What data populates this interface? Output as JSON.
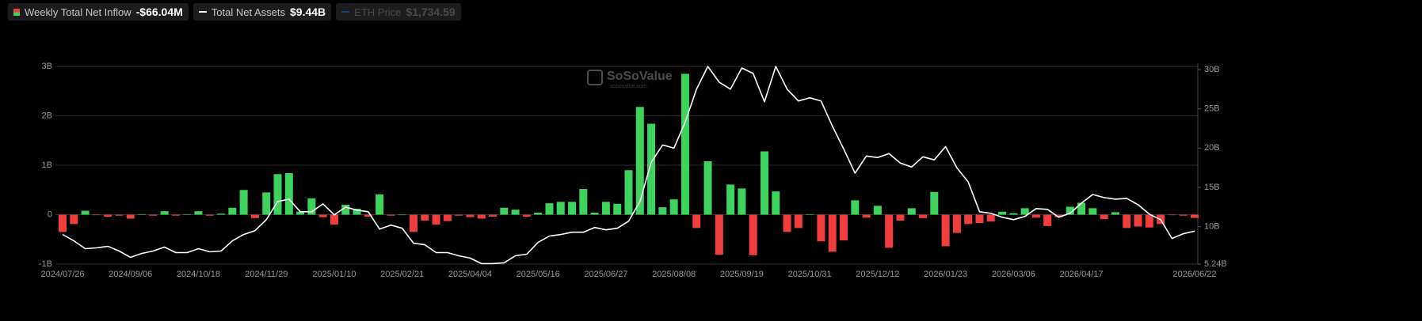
{
  "chart_data": {
    "type": "bar_line",
    "watermark": "SoSoValue",
    "watermark_sub": "sosovalue.com",
    "categories": [
      "2024/07/26",
      null,
      null,
      null,
      null,
      null,
      "2024/09/06",
      null,
      null,
      null,
      null,
      null,
      "2024/10/18",
      null,
      null,
      null,
      null,
      null,
      "2024/11/29",
      null,
      null,
      null,
      null,
      null,
      "2025/01/10",
      null,
      null,
      null,
      null,
      null,
      "2025/02/21",
      null,
      null,
      null,
      null,
      null,
      "2025/04/04",
      null,
      null,
      null,
      null,
      null,
      "2025/05/16",
      null,
      null,
      null,
      null,
      null,
      "2025/06/27",
      null,
      null,
      null,
      null,
      null,
      "2025/08/08",
      null,
      null,
      null,
      null,
      null,
      "2025/09/19",
      null,
      null,
      null,
      null,
      null,
      "2025/10/31",
      null,
      null,
      null,
      null,
      null,
      "2025/12/12",
      null,
      null,
      null,
      null,
      null,
      "2026/01/23",
      null,
      null,
      null,
      null,
      null,
      "2026/03/06",
      null,
      null,
      null,
      null,
      null,
      "2026/04/17",
      null,
      null,
      null,
      null,
      null,
      null,
      null,
      null,
      null,
      "2026/06/22"
    ],
    "series": [
      {
        "name": "Weekly Total Net Inflow",
        "latest_label": "-$66.04M",
        "color": "#3dd35c",
        "negative_color": "#f23d3d",
        "values": [
          -0.35,
          -0.19,
          0.08,
          -0.01,
          -0.04,
          -0.02,
          -0.08,
          0.01,
          -0.02,
          0.07,
          -0.02,
          0.01,
          0.07,
          -0.02,
          0.02,
          0.14,
          0.5,
          -0.07,
          0.45,
          0.82,
          0.84,
          0.06,
          0.33,
          -0.05,
          -0.2,
          0.2,
          0.12,
          -0.04,
          0.41,
          -0.02,
          0,
          -0.35,
          -0.12,
          -0.2,
          -0.13,
          -0.02,
          -0.05,
          -0.08,
          -0.04,
          0.14,
          0.1,
          -0.04,
          0.04,
          0.23,
          0.26,
          0.26,
          0.52,
          0.04,
          0.26,
          0.22,
          0.9,
          2.18,
          1.84,
          0.15,
          0.31,
          2.85,
          -0.27,
          1.08,
          -0.81,
          0.61,
          0.53,
          -0.82,
          1.28,
          0.47,
          -0.35,
          -0.27,
          0.01,
          -0.54,
          -0.75,
          -0.52,
          0.29,
          -0.06,
          0.18,
          -0.67,
          -0.12,
          0.13,
          -0.07,
          0.46,
          -0.64,
          -0.37,
          -0.19,
          -0.17,
          -0.14,
          0.06,
          0.03,
          0.13,
          -0.06,
          -0.23,
          -0.05,
          0.16,
          0.24,
          0.13,
          -0.09,
          0.05,
          -0.27,
          -0.24,
          -0.26,
          -0.19,
          -0.01,
          -0.02,
          -0.06604
        ]
      },
      {
        "name": "Total Net Assets",
        "latest_label": "$9.44B",
        "color": "#ffffff",
        "axis": "y2",
        "values": [
          9.0,
          8.2,
          7.2,
          7.3,
          7.5,
          6.9,
          6.1,
          6.6,
          6.9,
          7.4,
          6.7,
          6.7,
          7.2,
          6.8,
          6.9,
          8.2,
          9.0,
          9.5,
          10.9,
          13.2,
          13.5,
          11.9,
          11.9,
          12.9,
          11.5,
          12.5,
          12.1,
          11.9,
          9.7,
          10.2,
          9.8,
          7.9,
          7.7,
          6.7,
          6.7,
          6.3,
          6.0,
          5.3,
          5.3,
          5.4,
          6.3,
          6.5,
          8.0,
          8.8,
          9.0,
          9.3,
          9.3,
          9.9,
          9.6,
          9.8,
          10.7,
          13.2,
          18.2,
          20.4,
          20.0,
          23.3,
          27.5,
          30.4,
          28.4,
          27.5,
          30.2,
          29.5,
          25.9,
          30.4,
          27.5,
          26.0,
          26.4,
          26.0,
          22.8,
          19.9,
          16.8,
          19.0,
          18.8,
          19.3,
          18.1,
          17.6,
          18.9,
          18.5,
          20.2,
          17.5,
          15.7,
          11.9,
          11.7,
          11.2,
          10.9,
          11.3,
          12.3,
          12.2,
          11.2,
          11.7,
          13.0,
          14.1,
          13.7,
          13.5,
          13.6,
          12.8,
          11.6,
          10.9,
          8.5,
          9.1,
          9.44
        ]
      }
    ],
    "eth_price": {
      "name": "ETH Price",
      "latest_label": "$1,734.59",
      "color": "#1e3a8a"
    },
    "ylim": [
      -1,
      3
    ],
    "yticks": [
      {
        "value": -1,
        "label": "-1B"
      },
      0,
      {
        "value": 1,
        "label": "1B"
      },
      {
        "value": 2,
        "label": "2B"
      },
      {
        "value": 3,
        "label": "3B"
      }
    ],
    "y2lim": [
      5.24,
      30.4
    ],
    "y2ticks": [
      {
        "value": 5.24,
        "label": "5.24B"
      },
      {
        "value": 10,
        "label": "10B"
      },
      {
        "value": 15,
        "label": "15B"
      },
      {
        "value": 20,
        "label": "20B"
      },
      {
        "value": 25,
        "label": "25B"
      },
      {
        "value": 30,
        "label": "30B"
      }
    ],
    "grid": true
  }
}
